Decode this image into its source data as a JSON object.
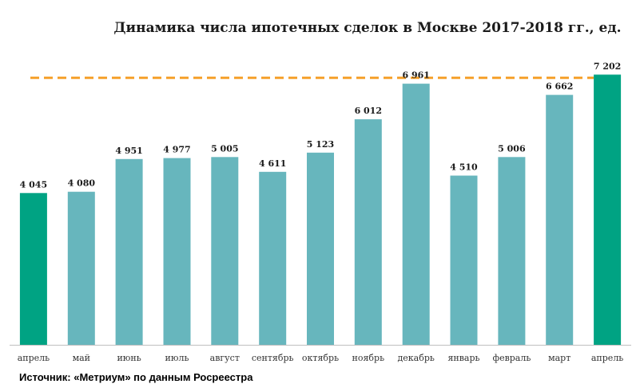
{
  "chart_data": {
    "type": "bar",
    "title": "Динамика числа ипотечных сделок в Москве 2017-2018 гг., ед.",
    "xlabel": "",
    "ylabel": "",
    "categories": [
      "апрель",
      "май",
      "июнь",
      "июль",
      "август",
      "сентябрь",
      "октябрь",
      "ноябрь",
      "декабрь",
      "январь",
      "февраль",
      "март",
      "апрель"
    ],
    "values": [
      4045,
      4080,
      4951,
      4977,
      5005,
      4611,
      5123,
      6012,
      6961,
      4510,
      5006,
      6662,
      7202
    ],
    "value_labels": [
      "4 045",
      "4 080",
      "4 951",
      "4 977",
      "5 005",
      "4 611",
      "5 123",
      "6 012",
      "6 961",
      "4 510",
      "5 006",
      "6 662",
      "7 202"
    ],
    "highlight_indices": [
      0,
      12
    ],
    "reference_line": {
      "value": 7202,
      "style": "dashed",
      "color": "#f5a02a"
    },
    "ylim": [
      0,
      7400
    ],
    "grid": false,
    "legend": "none",
    "colors": {
      "bar": "#67b6bd",
      "highlight": "#00a383",
      "axis": "#bfbfbf"
    }
  },
  "source_text": "Источник: «Метриум» по данным Росреестра"
}
